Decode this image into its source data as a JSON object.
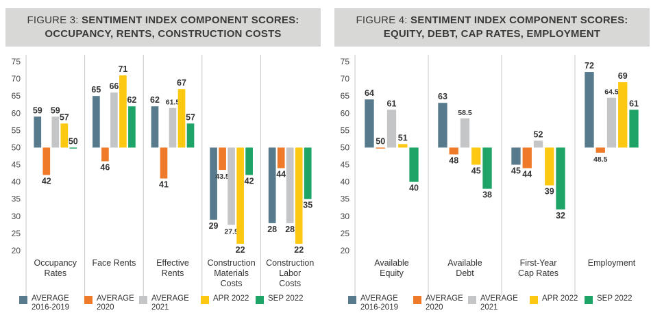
{
  "colors": {
    "avg_2016_2019": "#577b8c",
    "avg_2020": "#ef7a2a",
    "avg_2021": "#c4c5c7",
    "apr_2022": "#fcc812",
    "sep_2022": "#1da466",
    "title_bg": "#d8d9d6",
    "grid": "#c8c8c8"
  },
  "legend": [
    {
      "label": "AVERAGE\n2016-2019",
      "color": "#577b8c"
    },
    {
      "label": "AVERAGE\n2020",
      "color": "#ef7a2a"
    },
    {
      "label": "AVERAGE\n2021",
      "color": "#c4c5c7"
    },
    {
      "label": "APR 2022",
      "color": "#fcc812"
    },
    {
      "label": "SEP 2022",
      "color": "#1da466"
    }
  ],
  "chart_data": [
    {
      "type": "bar",
      "title_prefix": "FIGURE 3:",
      "title_bold_1": "SENTIMENT INDEX COMPONENT SCORES:",
      "title_bold_2": "OCCUPANCY, RENTS, CONSTRUCTION COSTS",
      "baseline": 50,
      "ylim": [
        20,
        75
      ],
      "yticks": [
        20,
        25,
        30,
        35,
        40,
        45,
        50,
        55,
        60,
        65,
        70,
        75
      ],
      "categories": [
        "Occupancy\nRates",
        "Face Rents",
        "Effective\nRents",
        "Construction\nMaterials\nCosts",
        "Construction\nLabor\nCosts"
      ],
      "series": [
        {
          "name": "AVERAGE 2016-2019",
          "labels": [
            "59",
            "65",
            "62",
            "29",
            "28"
          ],
          "values": [
            59,
            65,
            62,
            29,
            28
          ]
        },
        {
          "name": "AVERAGE 2020",
          "labels": [
            "42",
            "46",
            "41",
            "43.5",
            "44"
          ],
          "values": [
            42,
            46,
            41,
            43.5,
            44
          ]
        },
        {
          "name": "AVERAGE 2021",
          "labels": [
            "59",
            "66",
            "61.5",
            "27.5",
            "28"
          ],
          "values": [
            59,
            66,
            61.5,
            27.5,
            28
          ]
        },
        {
          "name": "APR 2022",
          "labels": [
            "57",
            "71",
            "67",
            "22",
            "22"
          ],
          "values": [
            57,
            71,
            67,
            22,
            22
          ]
        },
        {
          "name": "SEP 2022",
          "labels": [
            "50",
            "62",
            "57",
            "42",
            "35"
          ],
          "values": [
            50,
            62,
            57,
            42,
            35
          ]
        }
      ]
    },
    {
      "type": "bar",
      "title_prefix": "FIGURE 4:",
      "title_bold_1": "SENTIMENT INDEX COMPONENT SCORES:",
      "title_bold_2": "EQUITY, DEBT, CAP RATES, EMPLOYMENT",
      "baseline": 50,
      "ylim": [
        20,
        75
      ],
      "yticks": [
        20,
        25,
        30,
        35,
        40,
        45,
        50,
        55,
        60,
        65,
        70,
        75
      ],
      "categories": [
        "Available\nEquity",
        "Available\nDebt",
        "First-Year\nCap Rates",
        "Employment"
      ],
      "series": [
        {
          "name": "AVERAGE 2016-2019",
          "labels": [
            "64",
            "63",
            "45",
            "72"
          ],
          "values": [
            64,
            63,
            45,
            72
          ]
        },
        {
          "name": "AVERAGE 2020",
          "labels": [
            "50",
            "48",
            "44",
            "48.5"
          ],
          "values": [
            50,
            48,
            44,
            48.5
          ]
        },
        {
          "name": "AVERAGE 2021",
          "labels": [
            "61",
            "58.5",
            "52",
            "64.5"
          ],
          "values": [
            61,
            58.5,
            52,
            64.5
          ]
        },
        {
          "name": "APR 2022",
          "labels": [
            "51",
            "45",
            "39",
            "69"
          ],
          "values": [
            51,
            45,
            39,
            69
          ]
        },
        {
          "name": "SEP 2022",
          "labels": [
            "40",
            "38",
            "32",
            "61"
          ],
          "values": [
            40,
            38,
            32,
            61
          ]
        }
      ]
    }
  ]
}
